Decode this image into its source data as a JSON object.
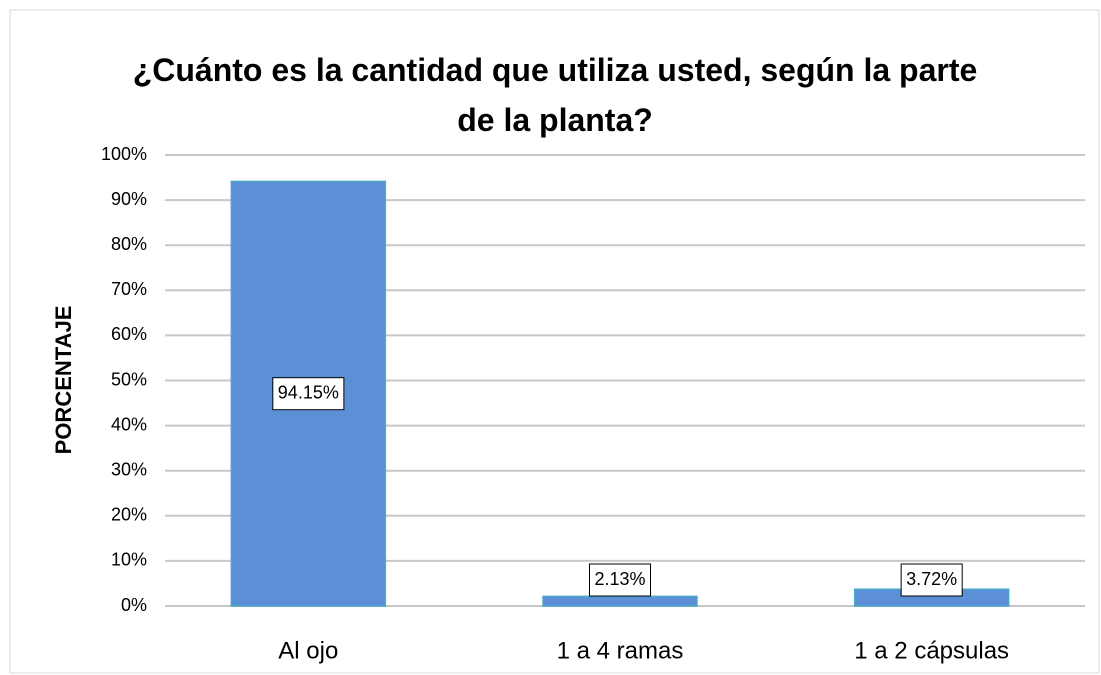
{
  "chart_data": {
    "type": "bar",
    "title": "¿Cuánto es la cantidad que utiliza usted, según la parte de la planta?",
    "y_label": "PORCENTAJE",
    "categories": [
      "Al ojo",
      "1 a 4 ramas",
      "1 a 2 cápsulas"
    ],
    "values": [
      94.15,
      2.13,
      3.72
    ],
    "value_labels": [
      "94.15%",
      "2.13%",
      "3.72%"
    ],
    "color": "#5b8fd6",
    "ylim": [
      0,
      100
    ],
    "yticks": [
      {
        "value": 0,
        "label": "0%"
      },
      {
        "value": 10,
        "label": "10%"
      },
      {
        "value": 20,
        "label": "20%"
      },
      {
        "value": 30,
        "label": "30%"
      },
      {
        "value": 40,
        "label": "40%"
      },
      {
        "value": 50,
        "label": "50%"
      },
      {
        "value": 60,
        "label": "60%"
      },
      {
        "value": 70,
        "label": "70%"
      },
      {
        "value": 80,
        "label": "80%"
      },
      {
        "value": 90,
        "label": "90%"
      },
      {
        "value": 100,
        "label": "100%"
      }
    ],
    "grid": true
  }
}
